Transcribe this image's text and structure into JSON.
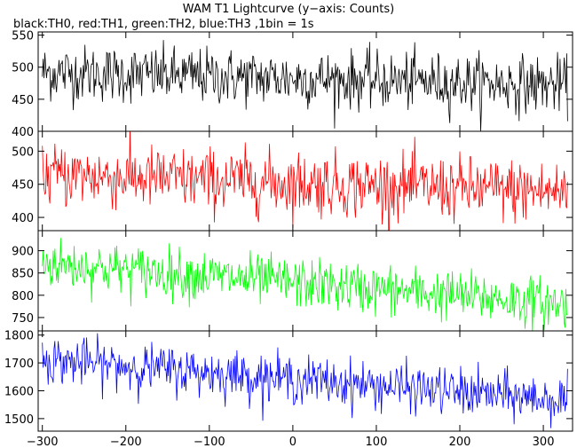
{
  "header": {
    "title": "WAM T1 Lightcurve (y−axis: Counts)",
    "subtitle": "black:TH0, red:TH1, green:TH2, blue:TH3 ,1bin = 1s"
  },
  "chart_data": [
    {
      "type": "line",
      "series": [
        {
          "name": "TH0",
          "color": "#000000",
          "start_mean": 492,
          "end_mean": 472,
          "noise": 22
        }
      ],
      "ylim": [
        400,
        555
      ],
      "yticks": [
        400,
        450,
        500,
        550
      ],
      "xlim": [
        -305,
        335
      ],
      "xticks": [
        -300,
        -200,
        -100,
        0,
        100,
        200,
        300
      ],
      "grid": false
    },
    {
      "type": "line",
      "series": [
        {
          "name": "TH1",
          "color": "#ff0000",
          "start_mean": 465,
          "end_mean": 438,
          "noise": 24
        }
      ],
      "ylim": [
        380,
        530
      ],
      "yticks": [
        400,
        450,
        500
      ],
      "xlim": [
        -305,
        335
      ],
      "xticks": [
        -300,
        -200,
        -100,
        0,
        100,
        200,
        300
      ],
      "grid": false
    },
    {
      "type": "line",
      "series": [
        {
          "name": "TH2",
          "color": "#00ff00",
          "start_mean": 872,
          "end_mean": 780,
          "noise": 28
        }
      ],
      "ylim": [
        720,
        945
      ],
      "yticks": [
        750,
        800,
        850,
        900
      ],
      "xlim": [
        -305,
        335
      ],
      "xticks": [
        -300,
        -200,
        -100,
        0,
        100,
        200,
        300
      ],
      "grid": false
    },
    {
      "type": "line",
      "series": [
        {
          "name": "TH3",
          "color": "#0000ff",
          "start_mean": 1712,
          "end_mean": 1565,
          "noise": 42
        }
      ],
      "ylim": [
        1455,
        1815
      ],
      "yticks": [
        1500,
        1600,
        1700,
        1800
      ],
      "xlim": [
        -305,
        335
      ],
      "xticks": [
        -300,
        -200,
        -100,
        0,
        100,
        200,
        300
      ],
      "xticklabels": [
        "−300",
        "−200",
        "−100",
        "0",
        "100",
        "200",
        "300"
      ],
      "grid": false
    }
  ]
}
